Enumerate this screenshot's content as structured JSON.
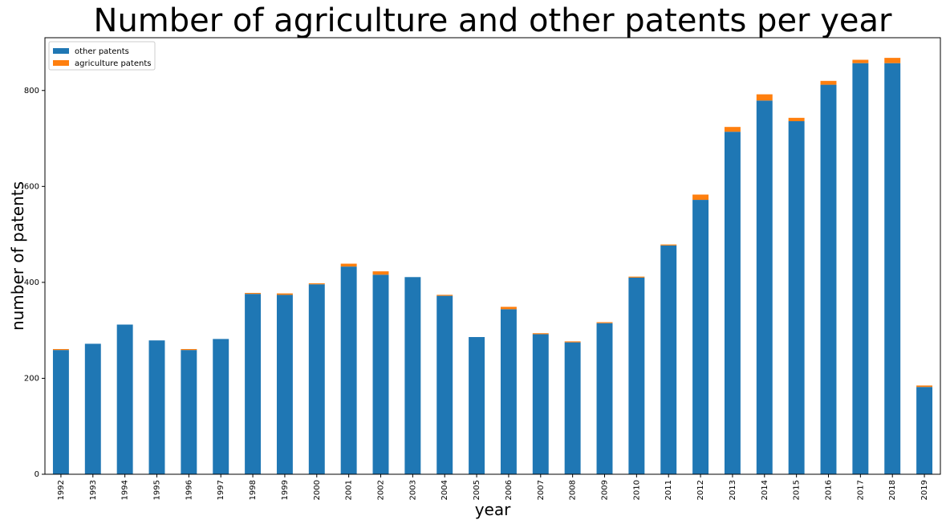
{
  "chart_data": {
    "type": "bar",
    "stacked": true,
    "title": "Number of agriculture and other patents per year",
    "xlabel": "year",
    "ylabel": "number of patents",
    "ylim": [
      0,
      910
    ],
    "yticks": [
      0,
      200,
      400,
      600,
      800
    ],
    "categories": [
      "1992",
      "1993",
      "1994",
      "1995",
      "1996",
      "1997",
      "1998",
      "1999",
      "2000",
      "2001",
      "2002",
      "2003",
      "2004",
      "2005",
      "2006",
      "2007",
      "2008",
      "2009",
      "2010",
      "2011",
      "2012",
      "2013",
      "2014",
      "2015",
      "2016",
      "2017",
      "2018",
      "2019"
    ],
    "series": [
      {
        "name": "other patents",
        "color": "#1f77b4",
        "values": [
          259,
          272,
          312,
          279,
          259,
          282,
          376,
          374,
          396,
          433,
          416,
          411,
          372,
          286,
          344,
          292,
          275,
          315,
          410,
          477,
          572,
          714,
          779,
          736,
          812,
          857,
          857,
          182
        ]
      },
      {
        "name": "agriculture patents",
        "color": "#ff7f0e",
        "values": [
          2,
          0,
          0,
          0,
          2,
          0,
          2,
          3,
          2,
          6,
          7,
          0,
          2,
          0,
          5,
          2,
          2,
          2,
          2,
          2,
          11,
          10,
          13,
          7,
          8,
          7,
          11,
          3
        ]
      }
    ],
    "legend_position": "top-left",
    "grid": false
  }
}
